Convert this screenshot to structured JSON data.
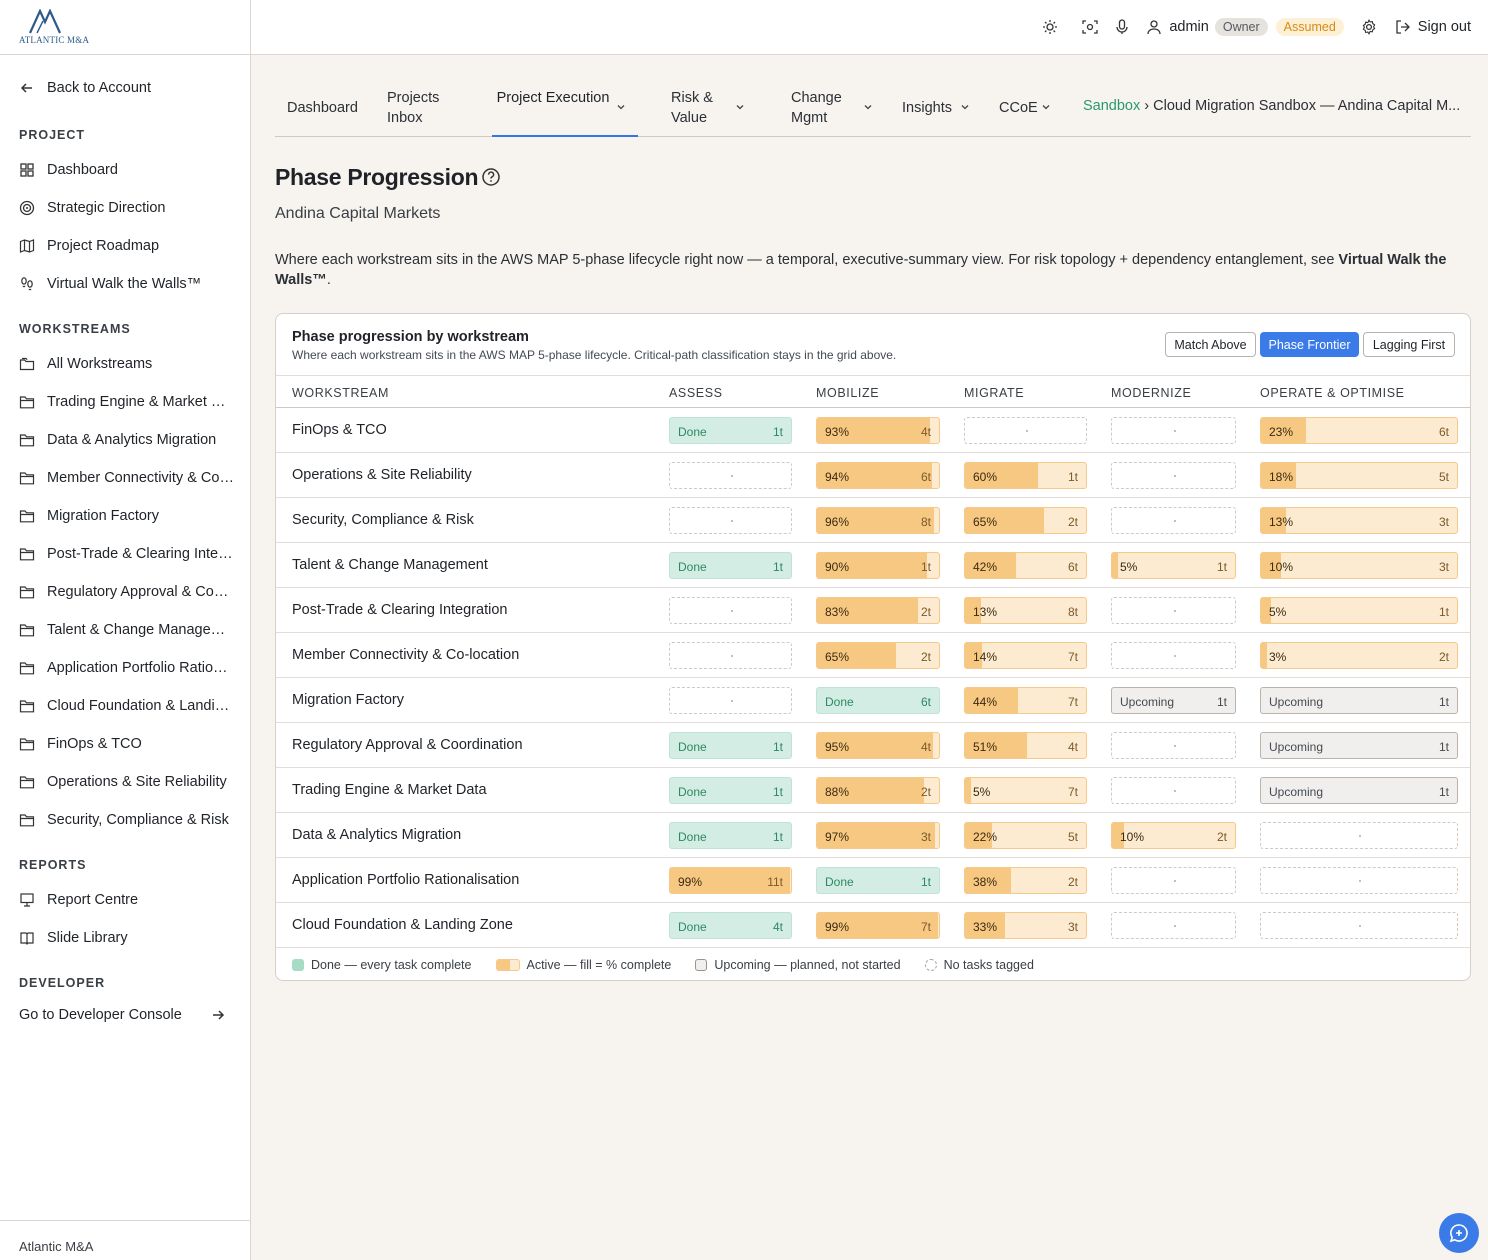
{
  "app": {
    "logo_text": "ATLANTIC M&A",
    "footer": "Atlantic M&A"
  },
  "sidebar": {
    "back_label": "Back to Account",
    "sections": {
      "project": "PROJECT",
      "workstreams": "WORKSTREAMS",
      "reports": "REPORTS",
      "developer": "DEVELOPER"
    },
    "project_items": [
      {
        "label": "Dashboard",
        "icon": "grid-icon"
      },
      {
        "label": "Strategic Direction",
        "icon": "target-icon"
      },
      {
        "label": "Project Roadmap",
        "icon": "map-icon"
      },
      {
        "label": "Virtual Walk the Walls™",
        "icon": "footprints-icon"
      }
    ],
    "workstream_items": [
      {
        "label": "All Workstreams",
        "icon": "folders-icon"
      },
      {
        "label": "Trading Engine & Market Data",
        "icon": "folder-icon"
      },
      {
        "label": "Data & Analytics Migration",
        "icon": "folder-icon"
      },
      {
        "label": "Member Connectivity & Co-location",
        "icon": "folder-icon"
      },
      {
        "label": "Migration Factory",
        "icon": "folder-icon"
      },
      {
        "label": "Post-Trade & Clearing Integration",
        "icon": "folder-icon"
      },
      {
        "label": "Regulatory Approval & Coordination",
        "icon": "folder-icon"
      },
      {
        "label": "Talent & Change Management",
        "icon": "folder-icon"
      },
      {
        "label": "Application Portfolio Rationalisation",
        "icon": "folder-icon"
      },
      {
        "label": "Cloud Foundation & Landing Zone",
        "icon": "folder-icon"
      },
      {
        "label": "FinOps & TCO",
        "icon": "folder-icon"
      },
      {
        "label": "Operations & Site Reliability",
        "icon": "folder-icon"
      },
      {
        "label": "Security, Compliance & Risk",
        "icon": "folder-icon"
      }
    ],
    "report_items": [
      {
        "label": "Report Centre",
        "icon": "presentation-icon"
      },
      {
        "label": "Slide Library",
        "icon": "book-icon"
      }
    ],
    "developer_console": "Go to Developer Console"
  },
  "topbar": {
    "user": "admin",
    "role_badge": "Owner",
    "assumed_badge": "Assumed",
    "signout": "Sign out"
  },
  "tabs": [
    {
      "label": "Dashboard"
    },
    {
      "label": "Projects Inbox"
    },
    {
      "label": "Project Execution",
      "active": true
    },
    {
      "label": "Risk & Value"
    },
    {
      "label": "Change Mgmt"
    },
    {
      "label": "Insights"
    },
    {
      "label": "CCoE"
    }
  ],
  "breadcrumb": {
    "root": "Sandbox",
    "sep": "›",
    "rest": "Cloud Migration Sandbox — Andina Capital M..."
  },
  "page": {
    "title": "Phase Progression",
    "subtitle": "Andina Capital Markets",
    "description_plain": "Where each workstream sits in the AWS MAP 5-phase lifecycle right now — a temporal, executive-summary view. For risk topology + dependency entanglement, see ",
    "description_bold": "Virtual Walk the Walls™",
    "description_end": "."
  },
  "card": {
    "title": "Phase progression by workstream",
    "subtitle": "Where each workstream sits in the AWS MAP 5-phase lifecycle. Critical-path classification stays in the grid above.",
    "sort_buttons": [
      "Match Above",
      "Phase Frontier",
      "Lagging First"
    ],
    "sort_active": "Phase Frontier",
    "columns": [
      "WORKSTREAM",
      "ASSESS",
      "MOBILIZE",
      "MIGRATE",
      "MODERNIZE",
      "OPERATE & OPTIMISE"
    ],
    "rows": [
      {
        "name": "FinOps & TCO",
        "cells": [
          {
            "state": "done",
            "label": "Done",
            "count": "1t"
          },
          {
            "state": "active",
            "label": "93%",
            "fill": 93,
            "count": "4t"
          },
          {
            "state": "empty"
          },
          {
            "state": "empty"
          },
          {
            "state": "active",
            "label": "23%",
            "fill": 23,
            "count": "6t"
          }
        ]
      },
      {
        "name": "Operations & Site Reliability",
        "cells": [
          {
            "state": "empty"
          },
          {
            "state": "active",
            "label": "94%",
            "fill": 94,
            "count": "6t"
          },
          {
            "state": "active",
            "label": "60%",
            "fill": 60,
            "count": "1t"
          },
          {
            "state": "empty"
          },
          {
            "state": "active",
            "label": "18%",
            "fill": 18,
            "count": "5t"
          }
        ]
      },
      {
        "name": "Security, Compliance & Risk",
        "cells": [
          {
            "state": "empty"
          },
          {
            "state": "active",
            "label": "96%",
            "fill": 96,
            "count": "8t"
          },
          {
            "state": "active",
            "label": "65%",
            "fill": 65,
            "count": "2t"
          },
          {
            "state": "empty"
          },
          {
            "state": "active",
            "label": "13%",
            "fill": 13,
            "count": "3t"
          }
        ]
      },
      {
        "name": "Talent & Change Management",
        "cells": [
          {
            "state": "done",
            "label": "Done",
            "count": "1t"
          },
          {
            "state": "active",
            "label": "90%",
            "fill": 90,
            "count": "1t"
          },
          {
            "state": "active",
            "label": "42%",
            "fill": 42,
            "count": "6t"
          },
          {
            "state": "active",
            "label": "5%",
            "fill": 5,
            "count": "1t"
          },
          {
            "state": "active",
            "label": "10%",
            "fill": 10,
            "count": "3t"
          }
        ]
      },
      {
        "name": "Post-Trade & Clearing Integration",
        "cells": [
          {
            "state": "empty"
          },
          {
            "state": "active",
            "label": "83%",
            "fill": 83,
            "count": "2t"
          },
          {
            "state": "active",
            "label": "13%",
            "fill": 13,
            "count": "8t"
          },
          {
            "state": "empty"
          },
          {
            "state": "active",
            "label": "5%",
            "fill": 5,
            "count": "1t"
          }
        ]
      },
      {
        "name": "Member Connectivity & Co-location",
        "cells": [
          {
            "state": "empty"
          },
          {
            "state": "active",
            "label": "65%",
            "fill": 65,
            "count": "2t"
          },
          {
            "state": "active",
            "label": "14%",
            "fill": 14,
            "count": "7t"
          },
          {
            "state": "empty"
          },
          {
            "state": "active",
            "label": "3%",
            "fill": 3,
            "count": "2t"
          }
        ]
      },
      {
        "name": "Migration Factory",
        "cells": [
          {
            "state": "empty"
          },
          {
            "state": "done",
            "label": "Done",
            "count": "6t"
          },
          {
            "state": "active",
            "label": "44%",
            "fill": 44,
            "count": "7t"
          },
          {
            "state": "upcoming",
            "label": "Upcoming",
            "count": "1t"
          },
          {
            "state": "upcoming",
            "label": "Upcoming",
            "count": "1t"
          }
        ]
      },
      {
        "name": "Regulatory Approval & Coordination",
        "cells": [
          {
            "state": "done",
            "label": "Done",
            "count": "1t"
          },
          {
            "state": "active",
            "label": "95%",
            "fill": 95,
            "count": "4t"
          },
          {
            "state": "active",
            "label": "51%",
            "fill": 51,
            "count": "4t"
          },
          {
            "state": "empty"
          },
          {
            "state": "upcoming",
            "label": "Upcoming",
            "count": "1t"
          }
        ]
      },
      {
        "name": "Trading Engine & Market Data",
        "cells": [
          {
            "state": "done",
            "label": "Done",
            "count": "1t"
          },
          {
            "state": "active",
            "label": "88%",
            "fill": 88,
            "count": "2t"
          },
          {
            "state": "active",
            "label": "5%",
            "fill": 5,
            "count": "7t"
          },
          {
            "state": "empty"
          },
          {
            "state": "upcoming",
            "label": "Upcoming",
            "count": "1t"
          }
        ]
      },
      {
        "name": "Data & Analytics Migration",
        "cells": [
          {
            "state": "done",
            "label": "Done",
            "count": "1t"
          },
          {
            "state": "active",
            "label": "97%",
            "fill": 97,
            "count": "3t"
          },
          {
            "state": "active",
            "label": "22%",
            "fill": 22,
            "count": "5t"
          },
          {
            "state": "active",
            "label": "10%",
            "fill": 10,
            "count": "2t"
          },
          {
            "state": "empty"
          }
        ]
      },
      {
        "name": "Application Portfolio Rationalisation",
        "cells": [
          {
            "state": "active",
            "label": "99%",
            "fill": 99,
            "count": "11t"
          },
          {
            "state": "done",
            "label": "Done",
            "count": "1t"
          },
          {
            "state": "active",
            "label": "38%",
            "fill": 38,
            "count": "2t"
          },
          {
            "state": "empty"
          },
          {
            "state": "empty"
          }
        ]
      },
      {
        "name": "Cloud Foundation & Landing Zone",
        "cells": [
          {
            "state": "done",
            "label": "Done",
            "count": "4t"
          },
          {
            "state": "active",
            "label": "99%",
            "fill": 99,
            "count": "7t"
          },
          {
            "state": "active",
            "label": "33%",
            "fill": 33,
            "count": "3t"
          },
          {
            "state": "empty"
          },
          {
            "state": "empty"
          }
        ]
      }
    ],
    "legend": [
      {
        "key": "done",
        "label": "Done — every task complete"
      },
      {
        "key": "active",
        "label": "Active — fill = % complete"
      },
      {
        "key": "upcoming",
        "label": "Upcoming — planned, not started"
      },
      {
        "key": "empty",
        "label": "No tasks tagged"
      }
    ]
  },
  "colors": {
    "accent": "#3b7be8",
    "done_bg": "#d4ede4",
    "active_fill": "#f7c882",
    "active_bg": "#fdebd1",
    "breadcrumb_green": "#2b9a6a",
    "assumed": "#d98a16"
  }
}
